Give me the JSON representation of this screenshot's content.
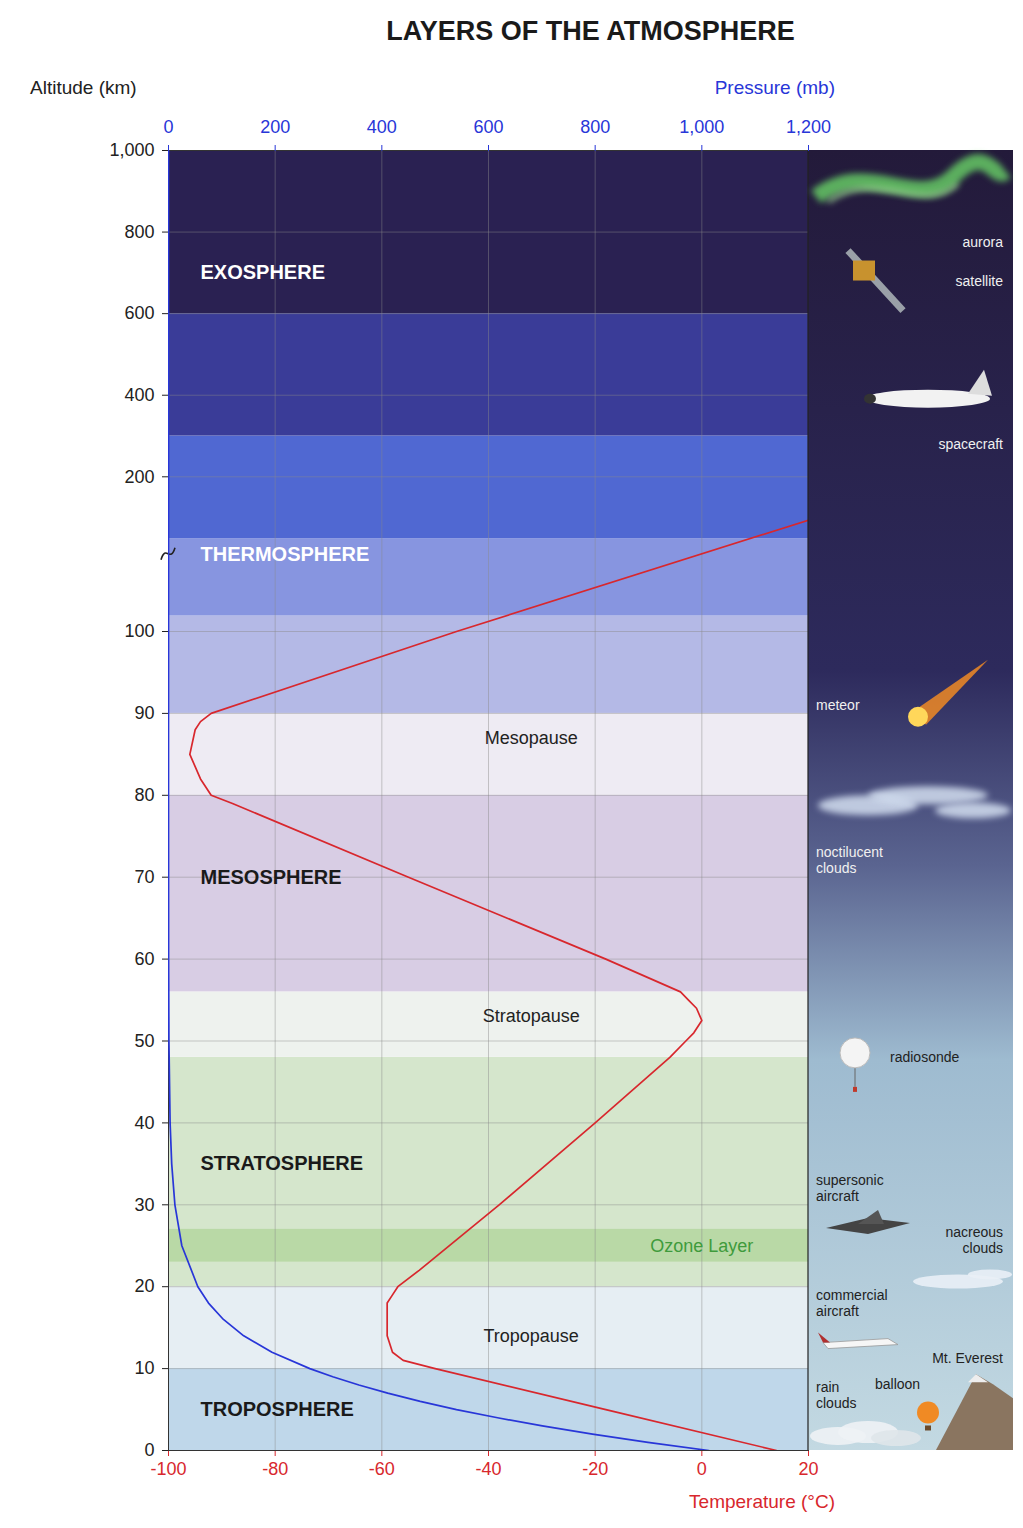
{
  "chart_data": {
    "type": "line",
    "title": "LAYERS OF THE ATMOSPHERE",
    "y_label": "Altitude (km)",
    "ylim": [
      0,
      1000
    ],
    "yticks": [
      0,
      10,
      20,
      30,
      40,
      50,
      60,
      70,
      80,
      90,
      100,
      200,
      400,
      600,
      800,
      {
        "value": 1000,
        "label": "1,000"
      }
    ],
    "x_label": "Temperature (°C)",
    "xlim": [
      -100,
      20
    ],
    "xticks": [
      -100,
      -80,
      -60,
      -40,
      -20,
      0,
      20
    ],
    "x2_label": "Pressure (mb)",
    "x2lim": [
      0,
      1200
    ],
    "x2ticks": [
      0,
      200,
      400,
      600,
      800,
      {
        "value": 1000,
        "label": "1,000"
      },
      {
        "value": 1200,
        "label": "1,200"
      }
    ],
    "grid": true,
    "series": [
      {
        "color": "#d8272d",
        "axis": "x",
        "x": [
          14,
          -18,
          -50,
          -56,
          -58,
          -59,
          -59,
          -59,
          -58,
          -57,
          -53,
          -38,
          -20,
          -6,
          -3,
          -1.5,
          0,
          -1,
          -2.5,
          -4,
          -18,
          -55,
          -88,
          -92,
          -94,
          -96,
          -95,
          -94,
          -92,
          -46,
          20
        ],
        "y": [
          0,
          5,
          10,
          11,
          12,
          14,
          16,
          18,
          19,
          20,
          22,
          30,
          40,
          48,
          50,
          51,
          52.5,
          54,
          55,
          56,
          60,
          70,
          79,
          80,
          82,
          85,
          88,
          89,
          90,
          100,
          172
        ]
      },
      {
        "color": "#2836d8",
        "axis": "x2",
        "x": [
          1013,
          899,
          795,
          701,
          617,
          540,
          472,
          411,
          357,
          308,
          265,
          194,
          141,
          103,
          75,
          55,
          25,
          12,
          6,
          3,
          0.8,
          0.2,
          0.01,
          0,
          0
        ],
        "y": [
          0,
          1,
          2,
          3,
          4,
          5,
          6,
          7,
          8,
          9,
          10,
          12,
          14,
          16,
          18,
          20,
          25,
          30,
          35,
          40,
          50,
          60,
          80,
          100,
          1000
        ]
      }
    ],
    "bands": [
      {
        "range": [
          0,
          10
        ],
        "color": "#bfd7ea"
      },
      {
        "range": [
          10,
          20
        ],
        "color": "#e6eef3"
      },
      {
        "range": [
          20,
          48
        ],
        "color": "#d5e6cc"
      },
      {
        "range": [
          23,
          27
        ],
        "color": "#b9d9a6"
      },
      {
        "range": [
          48,
          56
        ],
        "color": "#eef2ee"
      },
      {
        "range": [
          56,
          80
        ],
        "color": "#d8cde4"
      },
      {
        "range": [
          80,
          90
        ],
        "color": "#eeebf3"
      },
      {
        "range": [
          90,
          110
        ],
        "color": "#b4b9e6"
      },
      {
        "range": [
          110,
          160
        ],
        "color": "#8795e0"
      },
      {
        "range": [
          160,
          300
        ],
        "color": "#5068d2"
      },
      {
        "range": [
          300,
          600
        ],
        "color": "#3a3c98"
      },
      {
        "range": [
          600,
          1000
        ],
        "color": "#2a2152"
      }
    ],
    "layer_labels": [
      {
        "text": "EXOSPHERE",
        "x": -94,
        "y": 700,
        "color": "#ffffff"
      },
      {
        "text": "THERMOSPHERE",
        "x": -94,
        "y": 150,
        "color": "#ffffff"
      },
      {
        "text": "MESOSPHERE",
        "x": -94,
        "y": 70,
        "color": "#1a1a1a"
      },
      {
        "text": "STRATOSPHERE",
        "x": -94,
        "y": 35,
        "color": "#1a1a1a"
      },
      {
        "text": "TROPOSPHERE",
        "x": -94,
        "y": 5,
        "color": "#1a1a1a"
      }
    ],
    "boundary_labels": [
      {
        "text": "Mesopause",
        "x": -32,
        "y": 87,
        "color": "#222222"
      },
      {
        "text": "Stratopause",
        "x": -32,
        "y": 53,
        "color": "#222222"
      },
      {
        "text": "Ozone Layer",
        "x": 0,
        "y": 25,
        "color": "#3f9b3c"
      },
      {
        "text": "Tropopause",
        "x": -32,
        "y": 14,
        "color": "#222222"
      }
    ],
    "illustrations": [
      {
        "text": "aurora",
        "y": 775
      },
      {
        "text": "satellite",
        "y": 680
      },
      {
        "text": "spacecraft",
        "y": 280
      },
      {
        "text": "meteor",
        "y": 91
      },
      {
        "text": "noctilucent clouds",
        "y": 72
      },
      {
        "text": "radiosonde",
        "y": 48
      },
      {
        "text": "supersonic aircraft",
        "y": 32
      },
      {
        "text": "nacreous clouds",
        "y": 25.7
      },
      {
        "text": "commercial aircraft",
        "y": 18
      },
      {
        "text": "Mt. Everest",
        "y": 11.2
      },
      {
        "text": "rain clouds",
        "y": 6.7
      },
      {
        "text": "balloon",
        "y": 8
      }
    ]
  }
}
